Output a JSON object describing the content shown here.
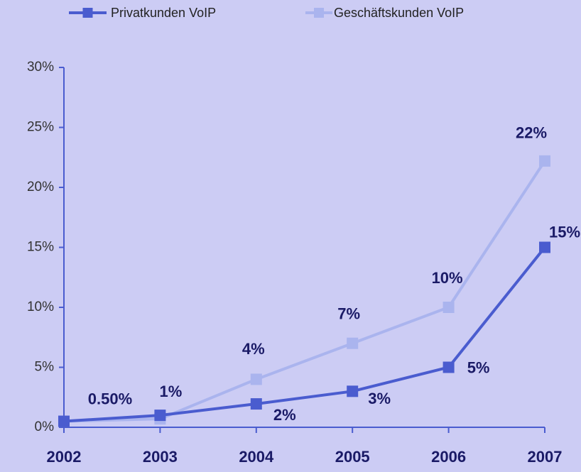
{
  "chart_data": {
    "type": "line",
    "categories": [
      "2002",
      "2003",
      "2004",
      "2005",
      "2006",
      "2007"
    ],
    "series": [
      {
        "name": "Privatkunden VoIP",
        "color": "#4a5ccf",
        "values": [
          0.5,
          1,
          1.95,
          3,
          5,
          15
        ],
        "value_labels": [
          "0.50%",
          "1%",
          "2%",
          "3%",
          "5%",
          "15%"
        ]
      },
      {
        "name": "Geschäftskunden VoIP",
        "color": "#aab4ee",
        "values": [
          0.5,
          0.7,
          4,
          7,
          10,
          22.2
        ],
        "value_labels": [
          null,
          null,
          "4%",
          "7%",
          "10%",
          "22%"
        ]
      }
    ],
    "ylim": [
      0,
      30
    ],
    "yticks": [
      {
        "value": 0,
        "label": "0%"
      },
      {
        "value": 5,
        "label": "5%"
      },
      {
        "value": 10,
        "label": "10%"
      },
      {
        "value": 15,
        "label": "15%"
      },
      {
        "value": 20,
        "label": "20%"
      },
      {
        "value": 25,
        "label": "25%"
      },
      {
        "value": 30,
        "label": "30%"
      }
    ],
    "legend": "top"
  }
}
